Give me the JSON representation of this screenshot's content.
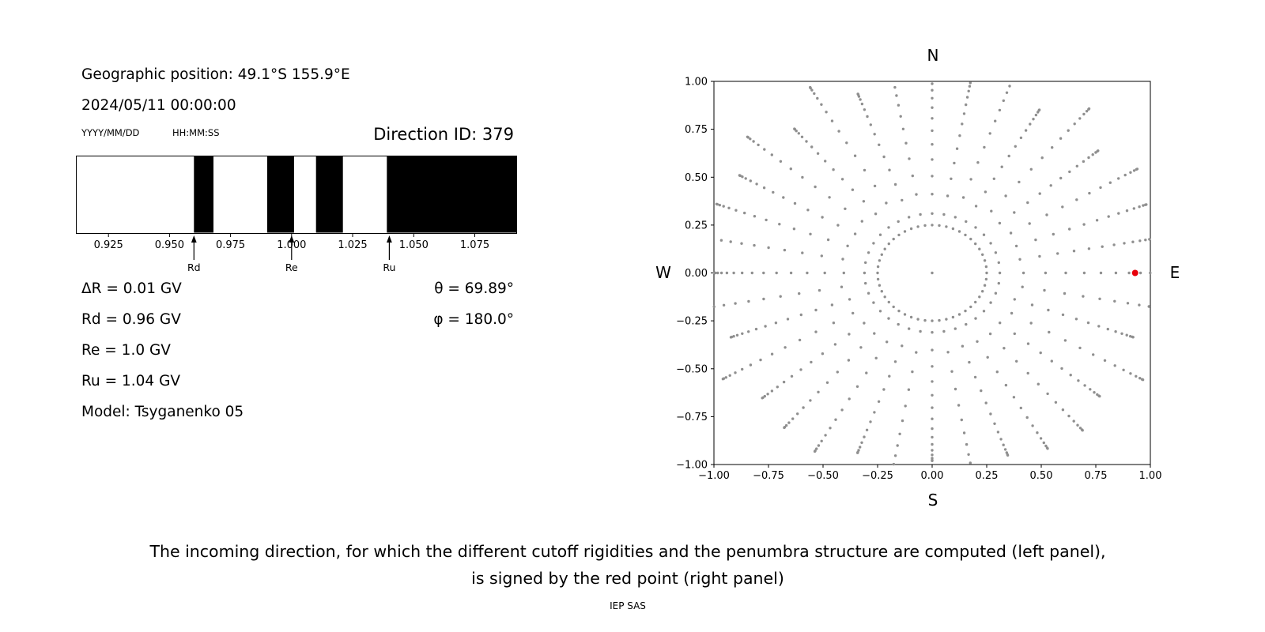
{
  "meta": {
    "background": "#ffffff",
    "text_color": "#000000"
  },
  "left_panel": {
    "geo_position": "Geographic position: 49.1°S 155.9°E",
    "datetime": "2024/05/11 00:00:00",
    "date_format": "YYYY/MM/DD",
    "time_format": "HH:MM:SS",
    "direction_id": "Direction ID: 379",
    "params": {
      "delta_r": "ΔR = 0.01 GV",
      "rd": "Rd = 0.96 GV",
      "re": "Re = 1.0 GV",
      "ru": "Ru = 1.04 GV",
      "model": "Model: Tsyganenko 05"
    },
    "angles": {
      "theta": "θ = 69.89°",
      "phi": "φ = 180.0°"
    }
  },
  "right_panel": {
    "compass": {
      "top": "N",
      "bottom": "S",
      "left": "W",
      "right": "E"
    }
  },
  "caption": {
    "line1": "The incoming direction, for which the different cutoff rigidities and the penumbra structure are computed (left panel),",
    "line2": "is signed by the red point (right panel)",
    "credit": "IEP SAS"
  },
  "chart_data": [
    {
      "type": "bar",
      "name": "penumbra-structure",
      "description": "Penumbra structure barcode: black bands mark forbidden rigidity intervals (GV)",
      "xlim": [
        0.912,
        1.092
      ],
      "tick_values": [
        0.925,
        0.95,
        0.975,
        1.0,
        1.025,
        1.05,
        1.075
      ],
      "tick_labels": [
        "0.925",
        "0.950",
        "0.975",
        "1.000",
        "1.025",
        "1.050",
        "1.075"
      ],
      "black_bands": [
        [
          0.96,
          0.968
        ],
        [
          0.99,
          1.001
        ],
        [
          1.01,
          1.021
        ],
        [
          1.039,
          1.092
        ]
      ],
      "arrows": [
        {
          "label": "Rd",
          "x": 0.96
        },
        {
          "label": "Re",
          "x": 1.0
        },
        {
          "label": "Ru",
          "x": 1.04
        }
      ],
      "band_color": "#000000",
      "background": "#ffffff"
    },
    {
      "type": "scatter",
      "name": "incoming-directions",
      "description": "Sky map of incoming directions: 36 radial rays of gray dots every 10°, dots bunching toward the horizon (r=1), inner ring of dots at r=0.25, center dot, and the selected direction (ID 379) marked by a red point near the E axis",
      "xlim": [
        -1.0,
        1.0
      ],
      "ylim": [
        -1.0,
        1.0
      ],
      "x_tick_labels": [
        "−1.00",
        "−0.75",
        "−0.50",
        "−0.25",
        "0.00",
        "0.25",
        "0.50",
        "0.75",
        "1.00"
      ],
      "y_tick_labels": [
        "1.00",
        "0.75",
        "0.50",
        "0.25",
        "0.00",
        "−0.25",
        "−0.50",
        "−0.75",
        "−1.00"
      ],
      "rays": {
        "count": 36,
        "angle_step_deg": 10,
        "r_start": 0.31,
        "r_end": 1.05,
        "points_per_ray": 15,
        "ease_power": 2,
        "end_jitter": 0.07
      },
      "inner_ring": {
        "radius": 0.25,
        "num_points": 48
      },
      "center_dot": {
        "x": 0,
        "y": 0
      },
      "red_point": {
        "x": 0.93,
        "y": 0.0
      },
      "dot_color": "#8f8f8f",
      "red_color": "#e8000b"
    }
  ]
}
